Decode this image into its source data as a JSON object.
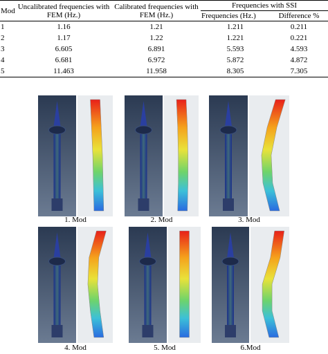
{
  "table": {
    "header": {
      "mod": "Mod",
      "uncalibrated": "Uncalibrated frequencies with FEM (Hz.)",
      "calibrated": "Calibrated frequencies with FEM (Hz.)",
      "ssi": "Frequencies with SSI",
      "ssi_freq": "Frequencies (Hz.)",
      "difference": "Difference %"
    },
    "rows": [
      [
        "1",
        "1.16",
        "1.21",
        "1.211",
        "0.211"
      ],
      [
        "2",
        "1.17",
        "1.22",
        "1.221",
        "0.221"
      ],
      [
        "3",
        "6.605",
        "6.891",
        "5.593",
        "4.593"
      ],
      [
        "4",
        "6.681",
        "6.972",
        "5.872",
        "4.872"
      ],
      [
        "5",
        "11.463",
        "11.958",
        "8.305",
        "7.305"
      ]
    ]
  },
  "figures": [
    {
      "caption": "1. Mod"
    },
    {
      "caption": "2. Mod"
    },
    {
      "caption": "3. Mod"
    },
    {
      "caption": "4. Mod"
    },
    {
      "caption": "5. Mod"
    },
    {
      "caption": "6.Mod"
    }
  ]
}
